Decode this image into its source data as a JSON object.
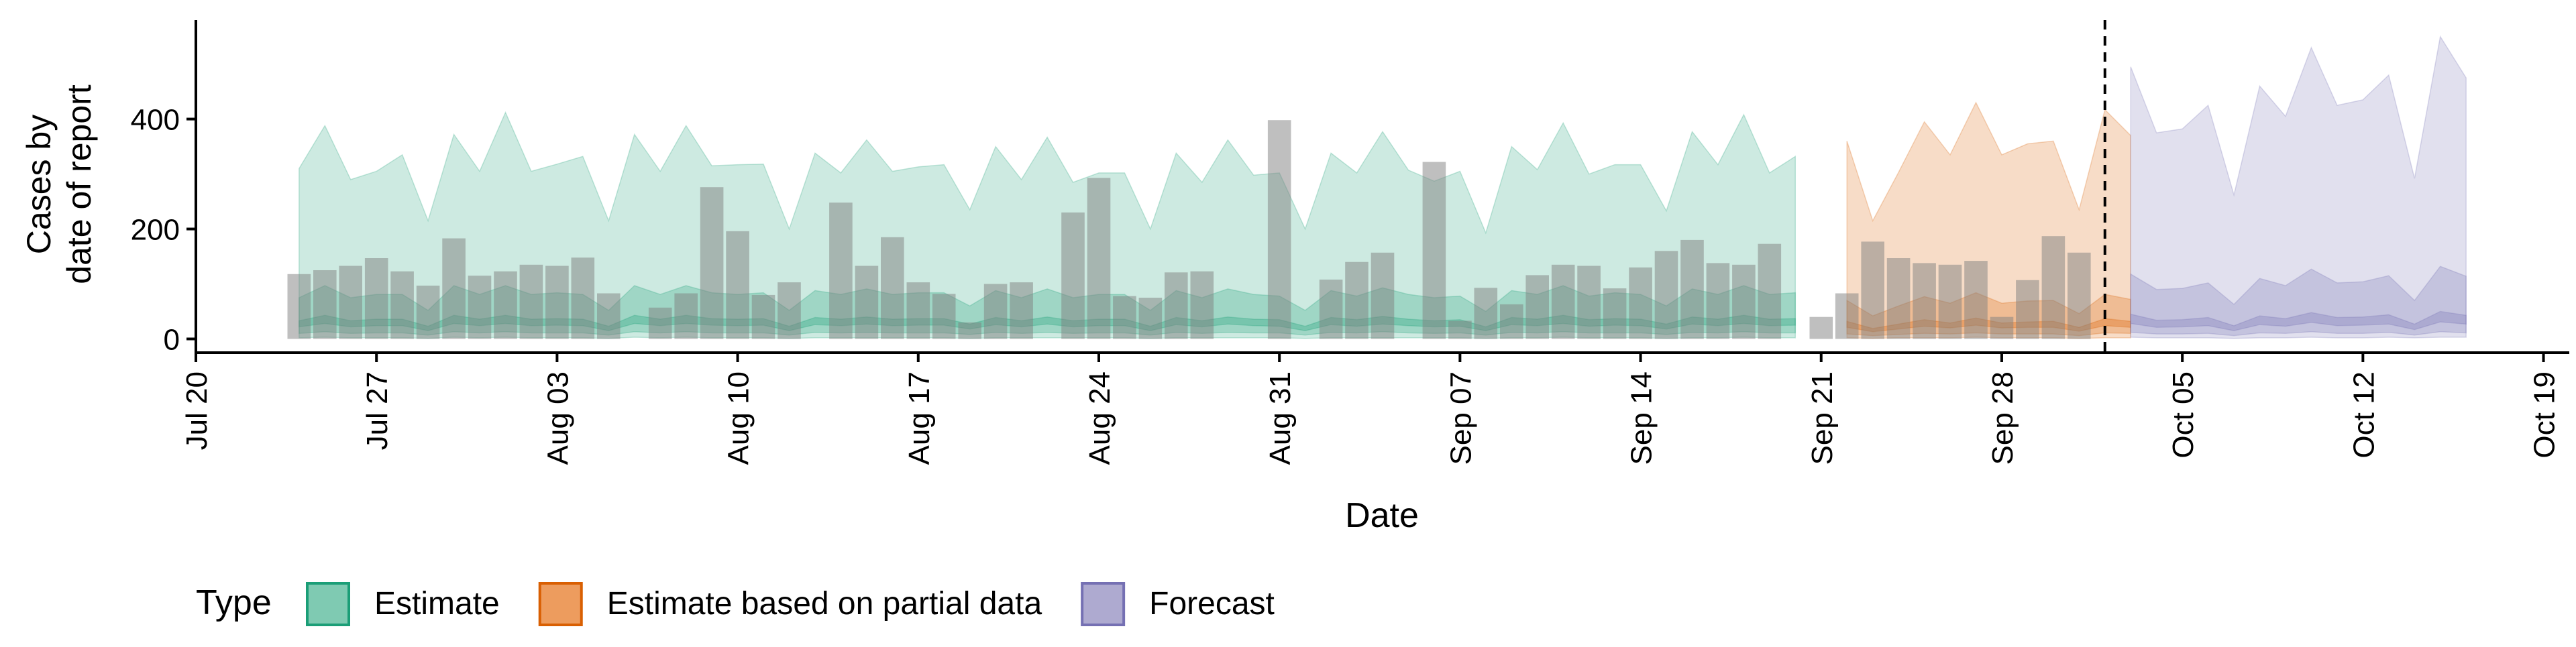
{
  "chart_data": {
    "type": "area",
    "title": "",
    "xlabel": "Date",
    "ylabel_lines": [
      "Cases by",
      "date of report"
    ],
    "x_unit": "date",
    "x_start": "2020-07-20",
    "x_ticks": [
      {
        "date": "2020-07-20",
        "label": "Jul 20"
      },
      {
        "date": "2020-07-27",
        "label": "Jul 27"
      },
      {
        "date": "2020-08-03",
        "label": "Aug 03"
      },
      {
        "date": "2020-08-10",
        "label": "Aug 10"
      },
      {
        "date": "2020-08-17",
        "label": "Aug 17"
      },
      {
        "date": "2020-08-24",
        "label": "Aug 24"
      },
      {
        "date": "2020-08-31",
        "label": "Aug 31"
      },
      {
        "date": "2020-09-07",
        "label": "Sep 07"
      },
      {
        "date": "2020-09-14",
        "label": "Sep 14"
      },
      {
        "date": "2020-09-21",
        "label": "Sep 21"
      },
      {
        "date": "2020-09-28",
        "label": "Sep 28"
      },
      {
        "date": "2020-10-05",
        "label": "Oct 05"
      },
      {
        "date": "2020-10-12",
        "label": "Oct 12"
      },
      {
        "date": "2020-10-19",
        "label": "Oct 19"
      }
    ],
    "xlim": [
      "2020-07-20",
      "2020-10-20"
    ],
    "y_ticks": [
      0,
      200,
      400
    ],
    "ylim": [
      -25,
      580
    ],
    "grid": false,
    "vline_date": "2020-10-02",
    "observed_cases": {
      "start_date": "2020-07-24",
      "values": [
        118,
        125,
        133,
        147,
        123,
        97,
        183,
        115,
        123,
        135,
        133,
        148,
        83,
        0,
        57,
        83,
        276,
        196,
        80,
        103,
        0,
        248,
        133,
        185,
        103,
        82,
        30,
        100,
        103,
        0,
        230,
        293,
        78,
        75,
        121,
        123,
        0,
        0,
        398,
        0,
        108,
        140,
        157,
        0,
        322,
        33,
        93,
        63,
        116,
        135,
        133,
        92,
        130,
        160,
        180,
        138,
        135,
        173,
        0,
        40,
        83,
        177,
        147,
        138,
        135,
        142,
        40,
        107,
        187,
        157
      ]
    },
    "legend": {
      "title": "Type",
      "position": "bottom",
      "entries": [
        {
          "label": "Estimate",
          "fill": "#7fcab2",
          "stroke": "#1b9e77"
        },
        {
          "label": "Estimate based on partial data",
          "fill": "#ed9c5e",
          "stroke": "#d95f02"
        },
        {
          "label": "Forecast",
          "fill": "#aeaad0",
          "stroke": "#7570b3"
        }
      ]
    },
    "series": [
      {
        "name": "Estimate",
        "color": "#1b9e77",
        "start_date": "2020-07-24",
        "upper90": [
          310,
          388,
          290,
          305,
          335,
          215,
          372,
          305,
          412,
          305,
          318,
          332,
          215,
          372,
          305,
          388,
          315,
          317,
          318,
          200,
          338,
          302,
          362,
          305,
          313,
          317,
          235,
          350,
          290,
          367,
          285,
          302,
          302,
          200,
          338,
          285,
          362,
          298,
          302,
          200,
          338,
          302,
          377,
          307,
          287,
          305,
          193,
          350,
          308,
          393,
          300,
          317,
          317,
          233,
          377,
          317,
          408,
          302,
          332
        ],
        "upper50": [
          75,
          97,
          75,
          81,
          81,
          52,
          97,
          81,
          97,
          81,
          84,
          81,
          52,
          97,
          81,
          97,
          84,
          81,
          84,
          52,
          88,
          81,
          91,
          81,
          84,
          84,
          60,
          88,
          75,
          91,
          75,
          81,
          81,
          52,
          88,
          75,
          91,
          81,
          78,
          52,
          88,
          78,
          93,
          81,
          75,
          78,
          50,
          88,
          81,
          97,
          78,
          84,
          81,
          60,
          91,
          81,
          97,
          81,
          84
        ],
        "upper20": [
          33,
          43,
          33,
          36,
          36,
          23,
          43,
          36,
          43,
          36,
          37,
          36,
          23,
          43,
          36,
          43,
          37,
          36,
          37,
          23,
          39,
          36,
          40,
          36,
          37,
          37,
          27,
          39,
          33,
          40,
          33,
          36,
          36,
          23,
          39,
          33,
          40,
          36,
          35,
          23,
          39,
          35,
          41,
          36,
          33,
          35,
          22,
          39,
          36,
          43,
          35,
          37,
          36,
          27,
          40,
          36,
          43,
          36,
          37
        ],
        "lower20": [
          22,
          28,
          22,
          24,
          24,
          15,
          28,
          24,
          28,
          24,
          25,
          24,
          15,
          28,
          24,
          28,
          25,
          24,
          25,
          15,
          26,
          24,
          27,
          24,
          25,
          25,
          18,
          26,
          22,
          27,
          22,
          24,
          24,
          15,
          26,
          22,
          27,
          24,
          23,
          15,
          26,
          23,
          27,
          24,
          22,
          23,
          15,
          26,
          24,
          28,
          23,
          25,
          24,
          18,
          27,
          24,
          28,
          24,
          25
        ],
        "lower50": [
          10,
          13,
          10,
          11,
          11,
          7,
          13,
          11,
          13,
          11,
          11,
          11,
          7,
          13,
          11,
          13,
          11,
          11,
          11,
          7,
          12,
          11,
          12,
          11,
          11,
          11,
          8,
          12,
          10,
          12,
          10,
          11,
          11,
          7,
          12,
          10,
          12,
          11,
          11,
          7,
          12,
          11,
          13,
          11,
          10,
          11,
          7,
          12,
          11,
          13,
          11,
          11,
          11,
          8,
          12,
          11,
          13,
          11,
          11
        ],
        "lower90": [
          2,
          3,
          2,
          2,
          2,
          1,
          3,
          2,
          3,
          2,
          2,
          2,
          1,
          3,
          2,
          3,
          2,
          2,
          2,
          1,
          2,
          2,
          2,
          2,
          2,
          2,
          1,
          2,
          2,
          2,
          2,
          2,
          2,
          1,
          2,
          2,
          2,
          2,
          2,
          1,
          2,
          2,
          2,
          2,
          2,
          2,
          1,
          2,
          2,
          3,
          2,
          2,
          2,
          1,
          2,
          2,
          3,
          2,
          2
        ]
      },
      {
        "name": "Estimate based on partial data",
        "color": "#d95f02",
        "start_date": "2020-09-22",
        "upper90": [
          360,
          215,
          303,
          395,
          335,
          430,
          335,
          355,
          360,
          235,
          417,
          370
        ],
        "upper50": [
          70,
          42,
          60,
          77,
          65,
          84,
          65,
          69,
          70,
          46,
          81,
          72
        ],
        "upper20": [
          32,
          19,
          27,
          35,
          29,
          38,
          29,
          31,
          32,
          21,
          37,
          32
        ],
        "lower20": [
          21,
          13,
          18,
          23,
          20,
          25,
          20,
          21,
          21,
          14,
          24,
          21
        ],
        "lower50": [
          9,
          6,
          8,
          10,
          9,
          11,
          9,
          9,
          9,
          6,
          11,
          10
        ],
        "lower90": [
          2,
          1,
          2,
          2,
          2,
          3,
          2,
          2,
          2,
          1,
          2,
          2
        ]
      },
      {
        "name": "Forecast",
        "color": "#7570b3",
        "start_date": "2020-10-03",
        "upper90": [
          495,
          375,
          382,
          425,
          262,
          460,
          405,
          530,
          425,
          435,
          480,
          292,
          550,
          475
        ],
        "upper50": [
          118,
          90,
          92,
          102,
          63,
          110,
          97,
          127,
          102,
          104,
          115,
          70,
          132,
          114
        ],
        "upper20": [
          45,
          34,
          35,
          39,
          24,
          42,
          37,
          48,
          39,
          40,
          44,
          27,
          50,
          43
        ],
        "lower20": [
          28,
          21,
          22,
          24,
          15,
          26,
          23,
          30,
          24,
          25,
          27,
          17,
          31,
          27
        ],
        "lower50": [
          12,
          9,
          9,
          10,
          6,
          11,
          10,
          13,
          10,
          10,
          12,
          7,
          13,
          11
        ],
        "lower90": [
          3,
          2,
          2,
          2,
          1,
          2,
          2,
          3,
          2,
          2,
          3,
          2,
          3,
          3
        ]
      }
    ]
  }
}
